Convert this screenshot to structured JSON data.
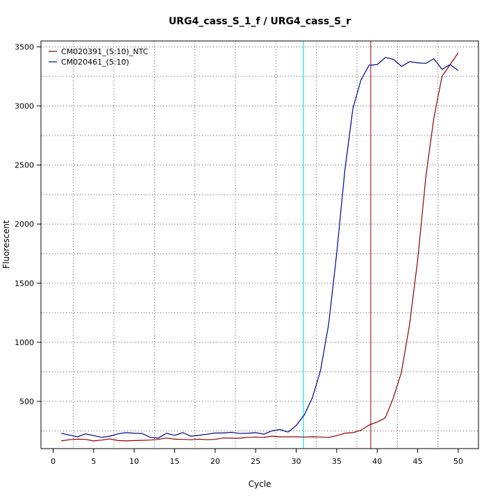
{
  "chart_data": {
    "type": "line",
    "title": "URG4_cass_S_1_f / URG4_cass_S_r",
    "xlabel": "Cycle",
    "ylabel": "Fluorescent",
    "xlim": [
      -1.5,
      52.5
    ],
    "ylim": [
      100,
      3550
    ],
    "xticks": [
      0,
      5,
      10,
      15,
      20,
      25,
      30,
      35,
      40,
      45,
      50
    ],
    "yticks": [
      500,
      1000,
      1500,
      2000,
      2500,
      3000,
      3500
    ],
    "grid": true,
    "legend_position": "top-left",
    "vlines": [
      {
        "x": 30.9,
        "color": "#00e5ee"
      },
      {
        "x": 39.2,
        "color": "#a52a2a"
      }
    ],
    "series": [
      {
        "name": "CM020391_(5:10)_NTC",
        "color": "#8b0000",
        "x": [
          1,
          2,
          3,
          4,
          5,
          6,
          7,
          8,
          9,
          10,
          11,
          12,
          13,
          14,
          15,
          16,
          17,
          18,
          19,
          20,
          21,
          22,
          23,
          24,
          25,
          26,
          27,
          28,
          29,
          30,
          31,
          32,
          33,
          34,
          35,
          36,
          37,
          38,
          39,
          40,
          41,
          42,
          43,
          44,
          45,
          46,
          47,
          48,
          49,
          50
        ],
        "values": [
          165,
          175,
          180,
          178,
          165,
          172,
          182,
          168,
          165,
          168,
          170,
          172,
          178,
          190,
          180,
          178,
          175,
          180,
          175,
          178,
          190,
          188,
          188,
          195,
          198,
          195,
          205,
          200,
          200,
          200,
          198,
          200,
          198,
          195,
          210,
          230,
          235,
          255,
          300,
          325,
          360,
          530,
          750,
          1150,
          1700,
          2400,
          2900,
          3250,
          3350,
          3450
        ]
      },
      {
        "name": "CM020461_(5:10)",
        "color": "#00008b",
        "x": [
          1,
          2,
          3,
          4,
          5,
          6,
          7,
          8,
          9,
          10,
          11,
          12,
          13,
          14,
          15,
          16,
          17,
          18,
          19,
          20,
          21,
          22,
          23,
          24,
          25,
          26,
          27,
          28,
          29,
          30,
          31,
          32,
          33,
          34,
          35,
          36,
          37,
          38,
          39,
          40,
          41,
          42,
          43,
          44,
          45,
          46,
          47,
          48,
          49,
          50
        ],
        "values": [
          230,
          215,
          200,
          225,
          210,
          195,
          205,
          225,
          235,
          230,
          228,
          195,
          190,
          230,
          212,
          235,
          205,
          212,
          222,
          232,
          232,
          238,
          228,
          230,
          235,
          222,
          250,
          262,
          240,
          295,
          385,
          530,
          760,
          1150,
          1750,
          2450,
          2980,
          3220,
          3345,
          3350,
          3410,
          3395,
          3335,
          3375,
          3365,
          3360,
          3400,
          3310,
          3350,
          3300
        ]
      }
    ]
  }
}
